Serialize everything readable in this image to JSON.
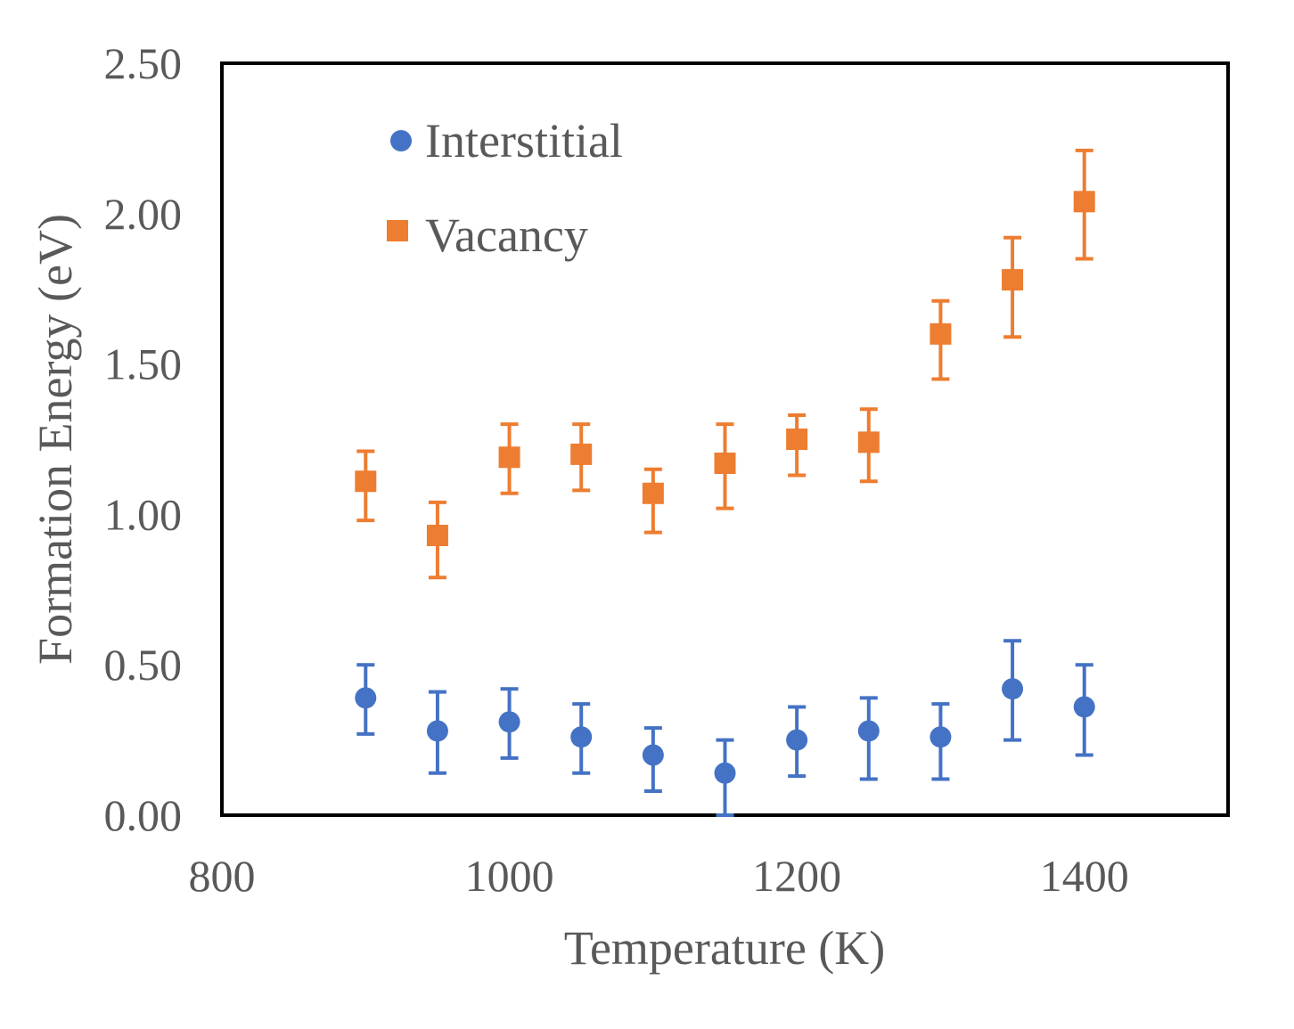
{
  "chart_data": {
    "type": "scatter",
    "title": "",
    "xlabel": "Temperature (K)",
    "ylabel": "Formation Energy (eV)",
    "xlim": [
      800,
      1500
    ],
    "ylim": [
      0,
      2.5
    ],
    "x_ticks": [
      "800",
      "1000",
      "1200",
      "1400"
    ],
    "y_ticks": [
      "0.00",
      "0.50",
      "1.00",
      "1.50",
      "2.00",
      "2.50"
    ],
    "grid": false,
    "legend_position": "top-left",
    "error_bars": true,
    "series": [
      {
        "name": "Interstitial",
        "marker": "circle",
        "color": "#4472C4",
        "x": [
          900,
          950,
          1000,
          1050,
          1100,
          1150,
          1200,
          1250,
          1300,
          1350,
          1400
        ],
        "y": [
          0.39,
          0.28,
          0.31,
          0.26,
          0.2,
          0.14,
          0.25,
          0.28,
          0.26,
          0.42,
          0.36
        ],
        "err_low": [
          0.12,
          0.14,
          0.12,
          0.12,
          0.12,
          0.14,
          0.12,
          0.16,
          0.14,
          0.17,
          0.16
        ],
        "err_high": [
          0.11,
          0.13,
          0.11,
          0.11,
          0.09,
          0.11,
          0.11,
          0.11,
          0.11,
          0.16,
          0.14
        ]
      },
      {
        "name": "Vacancy",
        "marker": "square",
        "color": "#ED7D31",
        "x": [
          900,
          950,
          1000,
          1050,
          1100,
          1150,
          1200,
          1250,
          1300,
          1350,
          1400
        ],
        "y": [
          1.11,
          0.93,
          1.19,
          1.2,
          1.07,
          1.17,
          1.25,
          1.24,
          1.6,
          1.78,
          2.04
        ],
        "err_low": [
          0.13,
          0.14,
          0.12,
          0.12,
          0.13,
          0.15,
          0.12,
          0.13,
          0.15,
          0.19,
          0.19
        ],
        "err_high": [
          0.1,
          0.11,
          0.11,
          0.1,
          0.08,
          0.13,
          0.08,
          0.11,
          0.11,
          0.14,
          0.17
        ]
      }
    ]
  }
}
